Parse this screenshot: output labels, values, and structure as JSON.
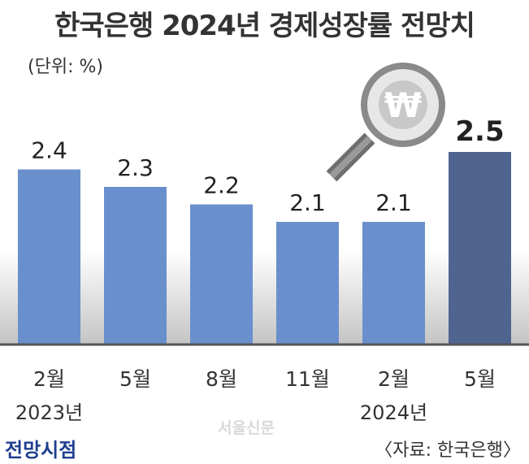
{
  "chart_data": {
    "type": "bar",
    "title": "한국은행 2024년 경제성장률 전망치",
    "unit_label": "(단위: %)",
    "categories": [
      "2월",
      "5월",
      "8월",
      "11월",
      "2월",
      "5월"
    ],
    "year_labels": [
      "2023년",
      "",
      "",
      "",
      "2024년",
      ""
    ],
    "values": [
      2.4,
      2.3,
      2.2,
      2.1,
      2.1,
      2.5
    ],
    "value_labels": [
      "2.4",
      "2.3",
      "2.2",
      "2.1",
      "2.1",
      "2.5"
    ],
    "highlight_index": 5,
    "ylim": [
      0,
      2.5
    ],
    "grid": false,
    "colors": {
      "bar": "#6a8fcd",
      "bar_highlight": "#4f6590",
      "baseline": "#555555"
    }
  },
  "footer": {
    "viewpoint_label": "전망시점",
    "source": "〈자료: 한국은행〉",
    "watermark": "서울신문"
  },
  "decoration": {
    "icon": "magnifier-won-icon",
    "symbol": "₩"
  }
}
